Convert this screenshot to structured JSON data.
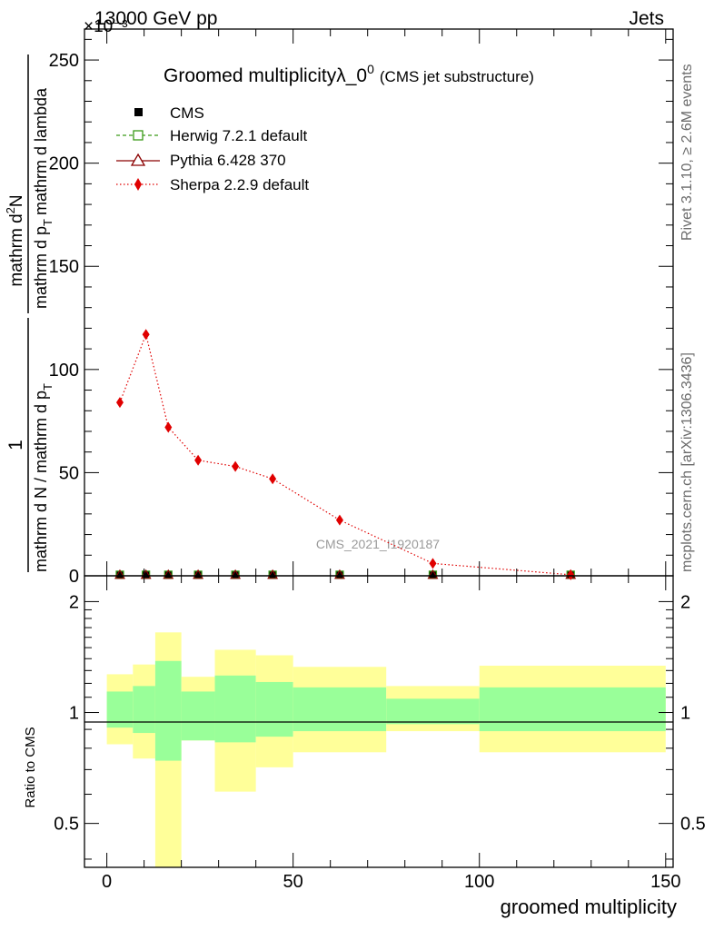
{
  "header": {
    "energy": "13000 GeV pp",
    "category": "Jets",
    "exponent_label": "×10⁻³"
  },
  "side_labels": {
    "rivet": "Rivet 3.1.10, ≥ 2.6M events",
    "site": "mcplots.cern.ch [arXiv:1306.3436]"
  },
  "chart_data": [
    {
      "type": "line",
      "title_main": "Groomed multiplicityλ_0",
      "title_sup": "0",
      "title_sub": "(CMS jet substructure)",
      "watermark": "CMS_2021_I1920187",
      "ylabel_parts": {
        "prefix": "1",
        "prefix_den": "mathrm d N / mathrm d p",
        "prefix_den_sub": "T",
        "main": "mathrm d",
        "main_sup": "2",
        "main_rest": "N",
        "main_den": "mathrm d p",
        "main_den_sub": "T",
        "main_den_rest": "mathrm d lambda"
      },
      "ylim": [
        0,
        265
      ],
      "yticks": [
        0,
        50,
        100,
        150,
        200,
        250
      ],
      "xlim": [
        -6,
        152
      ],
      "x": [
        3.5,
        10.5,
        16.5,
        24.5,
        34.5,
        44.5,
        62.5,
        87.5,
        124.5
      ],
      "legend": [
        {
          "name": "CMS",
          "marker": "square-filled",
          "color": "#000000"
        },
        {
          "name": "Herwig 7.2.1 default",
          "marker": "square-open",
          "color": "#3a9a18"
        },
        {
          "name": "Pythia 6.428 370",
          "marker": "triangle-open",
          "color": "#8b0000"
        },
        {
          "name": "Sherpa 2.2.9 default",
          "marker": "diamond-filled",
          "color": "#e00000"
        }
      ],
      "series": [
        {
          "name": "CMS",
          "values": [
            0.5,
            0.5,
            0.5,
            0.5,
            0.5,
            0.5,
            0.5,
            0.5,
            0.5
          ]
        },
        {
          "name": "Herwig 7.2.1 default",
          "values": [
            0.5,
            0.5,
            0.5,
            0.5,
            0.5,
            0.5,
            0.5,
            0.5,
            0.5
          ]
        },
        {
          "name": "Pythia 6.428 370",
          "values": [
            0.5,
            0.5,
            0.5,
            0.5,
            0.5,
            0.5,
            0.5,
            0.5,
            0.5
          ]
        },
        {
          "name": "Sherpa 2.2.9 default",
          "values": [
            84,
            117,
            72,
            56,
            53,
            47,
            27,
            6,
            0.5
          ]
        }
      ]
    },
    {
      "type": "area",
      "ylabel": "Ratio to CMS",
      "xlabel": "groomed multiplicity",
      "ylim": [
        0.38,
        2.35
      ],
      "yticks": [
        0.5,
        1,
        2
      ],
      "ytick_labels": [
        "0.5",
        "1",
        "2"
      ],
      "xticks": [
        0,
        50,
        100,
        150
      ],
      "xtick_labels": [
        "0",
        "50",
        "100",
        "150"
      ],
      "bins": [
        {
          "lo": 0,
          "hi": 7,
          "inner": [
            0.91,
            1.14
          ],
          "outer": [
            0.82,
            1.27
          ]
        },
        {
          "lo": 7,
          "hi": 13,
          "inner": [
            0.88,
            1.18
          ],
          "outer": [
            0.75,
            1.35
          ]
        },
        {
          "lo": 13,
          "hi": 20,
          "inner": [
            0.74,
            1.38
          ],
          "outer": [
            0.33,
            1.65
          ]
        },
        {
          "lo": 20,
          "hi": 29,
          "inner": [
            0.84,
            1.14
          ],
          "outer": [
            0.84,
            1.25
          ]
        },
        {
          "lo": 29,
          "hi": 40,
          "inner": [
            0.83,
            1.26
          ],
          "outer": [
            0.61,
            1.48
          ]
        },
        {
          "lo": 40,
          "hi": 50,
          "inner": [
            0.86,
            1.21
          ],
          "outer": [
            0.71,
            1.43
          ]
        },
        {
          "lo": 50,
          "hi": 75,
          "inner": [
            0.89,
            1.17
          ],
          "outer": [
            0.78,
            1.33
          ]
        },
        {
          "lo": 75,
          "hi": 100,
          "inner": [
            0.93,
            1.09
          ],
          "outer": [
            0.89,
            1.18
          ]
        },
        {
          "lo": 100,
          "hi": 150,
          "inner": [
            0.89,
            1.17
          ],
          "outer": [
            0.78,
            1.34
          ]
        }
      ],
      "colors": {
        "inner": "#99ff99",
        "outer": "#ffff99"
      }
    }
  ]
}
